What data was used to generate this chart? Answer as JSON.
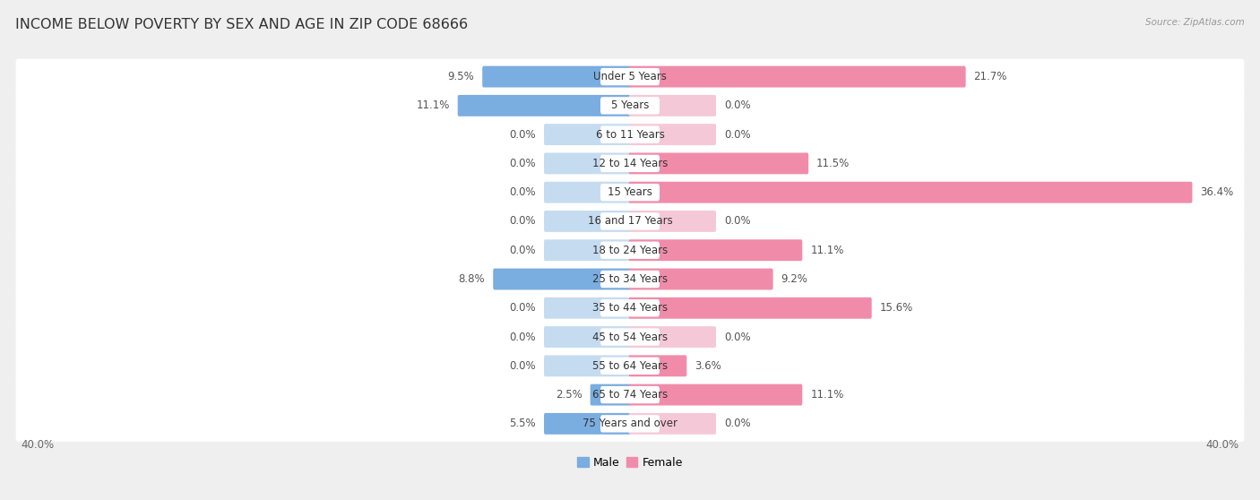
{
  "title": "INCOME BELOW POVERTY BY SEX AND AGE IN ZIP CODE 68666",
  "source": "Source: ZipAtlas.com",
  "categories": [
    "Under 5 Years",
    "5 Years",
    "6 to 11 Years",
    "12 to 14 Years",
    "15 Years",
    "16 and 17 Years",
    "18 to 24 Years",
    "25 to 34 Years",
    "35 to 44 Years",
    "45 to 54 Years",
    "55 to 64 Years",
    "65 to 74 Years",
    "75 Years and over"
  ],
  "male_values": [
    9.5,
    11.1,
    0.0,
    0.0,
    0.0,
    0.0,
    0.0,
    8.8,
    0.0,
    0.0,
    0.0,
    2.5,
    5.5
  ],
  "female_values": [
    21.7,
    0.0,
    0.0,
    11.5,
    36.4,
    0.0,
    11.1,
    9.2,
    15.6,
    0.0,
    3.6,
    11.1,
    0.0
  ],
  "male_color": "#7aade0",
  "female_color": "#f08caa",
  "male_color_light": "#c5dcf0",
  "female_color_light": "#f5c8d8",
  "axis_max": 40.0,
  "zero_bar_width": 5.5,
  "background_color": "#efefef",
  "row_bg_color": "#ffffff",
  "title_fontsize": 11.5,
  "label_fontsize": 8.5,
  "value_fontsize": 8.5,
  "tick_fontsize": 8.5,
  "source_fontsize": 7.5,
  "legend_fontsize": 9
}
